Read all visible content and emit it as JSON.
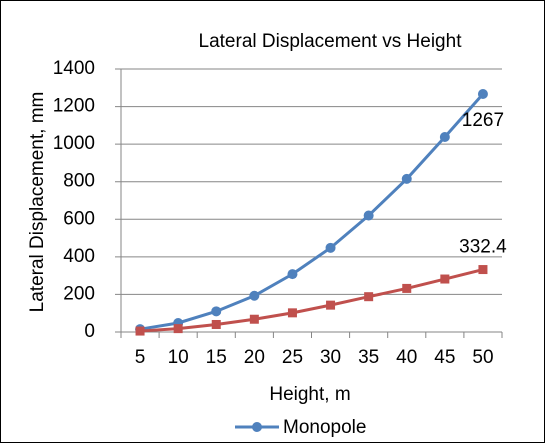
{
  "chart_data": {
    "type": "line",
    "title": "Lateral Displacement vs Height",
    "x_label": "Height, m",
    "y_label": "Lateral Displacement, mm",
    "categories": [
      "5",
      "10",
      "15",
      "20",
      "25",
      "30",
      "35",
      "40",
      "45",
      "50"
    ],
    "series": [
      {
        "name": "Monopole",
        "color": "#4f81bd",
        "marker": "circle",
        "values": [
          15,
          48,
          110,
          193,
          308,
          448,
          620,
          815,
          1038,
          1267
        ],
        "labeled": [
          9
        ]
      },
      {
        "color": "#c0504d",
        "marker": "square",
        "values": [
          5,
          18,
          40,
          68,
          102,
          143,
          188,
          232,
          282,
          332.4
        ],
        "labeled": [
          9
        ]
      }
    ],
    "ylim": [
      0,
      1400
    ],
    "yticks": [
      0,
      200,
      400,
      600,
      800,
      1000,
      1200,
      1400
    ],
    "grid": true,
    "legend": "bottom"
  }
}
